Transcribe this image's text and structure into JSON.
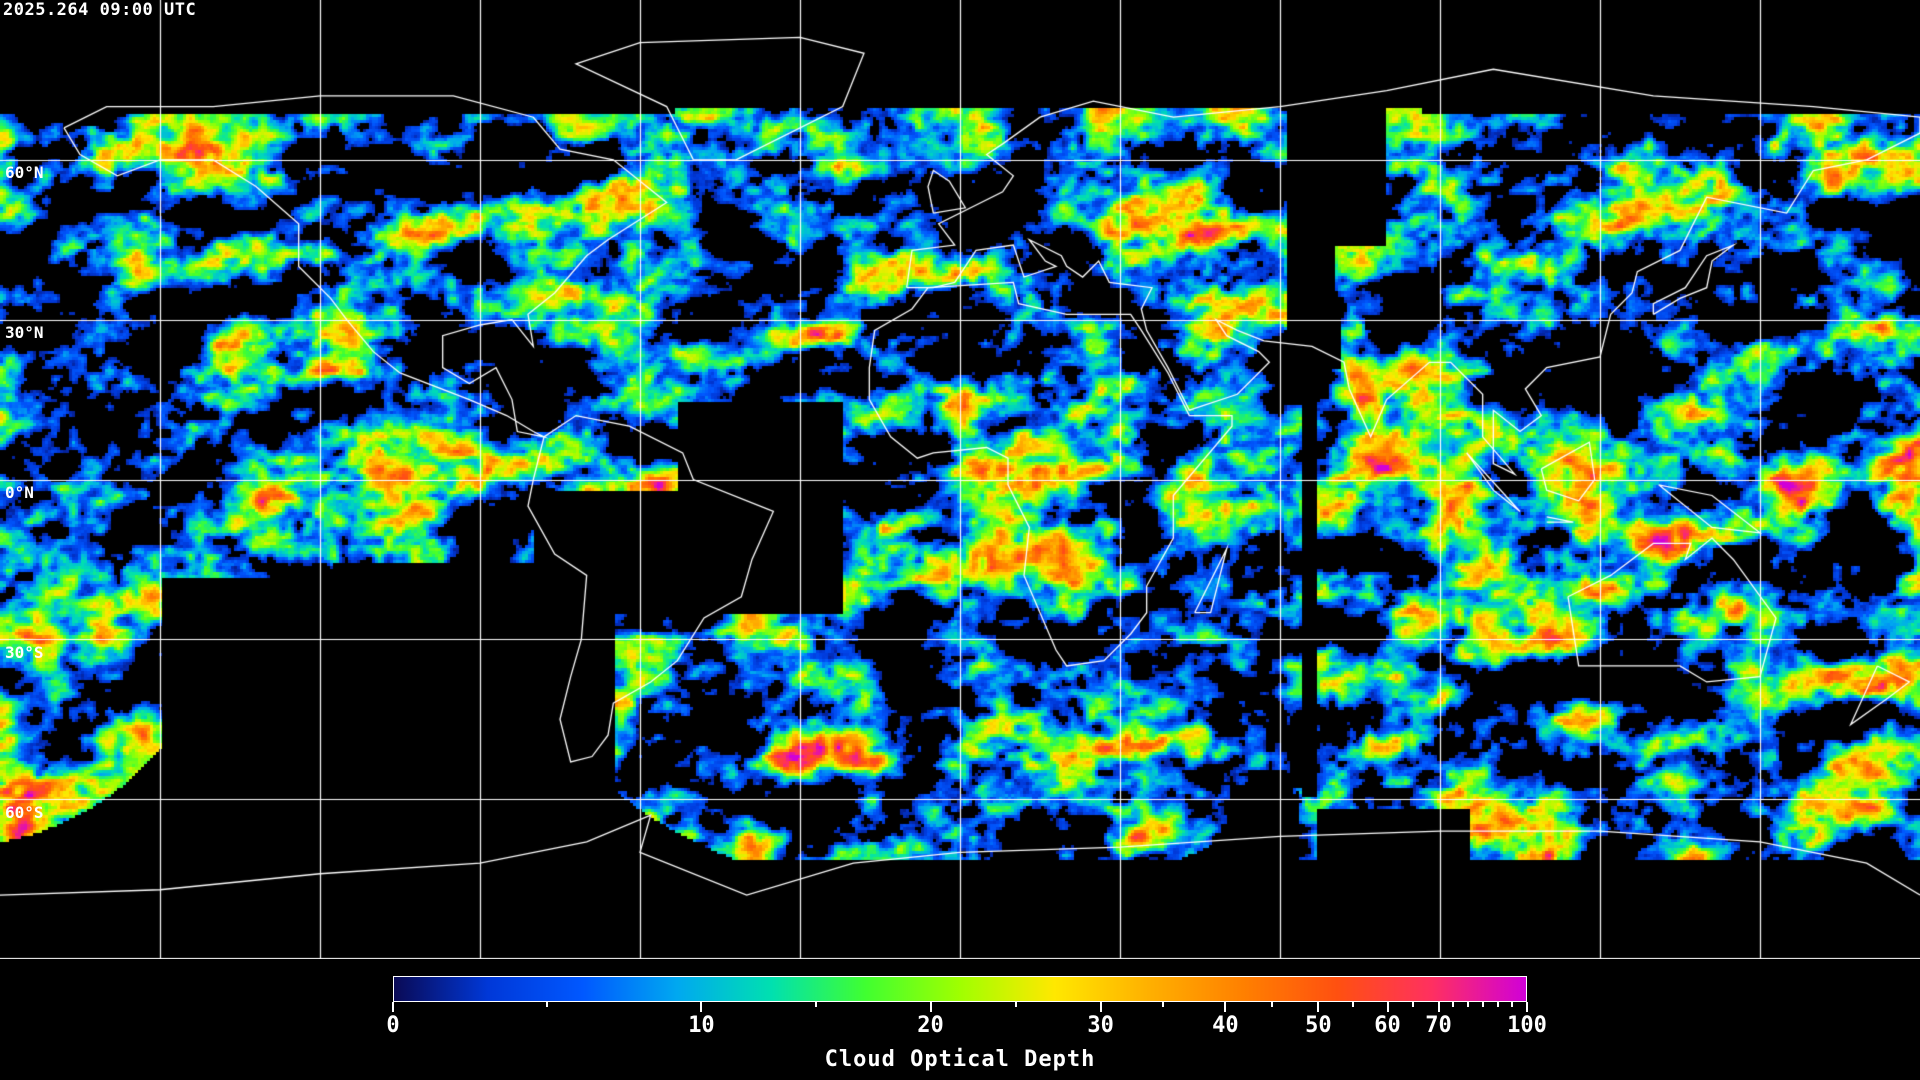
{
  "title": "2025.264 09:00 UTC",
  "map": {
    "projection": "equirectangular",
    "lon_range": [
      -180,
      180
    ],
    "lat_range": [
      -90,
      90
    ],
    "grid_spacing_deg": 30,
    "grid_color": "#ffffff",
    "coastline_color": "#ffffff",
    "no_data_color": "#000000",
    "lat_labels": [
      {
        "lat": 60,
        "text": "60°N"
      },
      {
        "lat": 30,
        "text": "30°N"
      },
      {
        "lat": 0,
        "text": "0°N"
      },
      {
        "lat": -30,
        "text": "30°S"
      },
      {
        "lat": -60,
        "text": "60°S"
      }
    ]
  },
  "colorbar": {
    "title": "Cloud Optical Depth",
    "min": 0,
    "max": 100,
    "tick_labels": [
      "0",
      "10",
      "20",
      "30",
      "40",
      "50",
      "60",
      "70",
      "100"
    ],
    "colormap": [
      "#0a0a55",
      "#0038d8",
      "#0058ff",
      "#00a8f0",
      "#00e0b0",
      "#40ff30",
      "#a0ff00",
      "#ffe800",
      "#ffb000",
      "#ff8000",
      "#ff5010",
      "#ff3060",
      "#d000d8"
    ]
  }
}
